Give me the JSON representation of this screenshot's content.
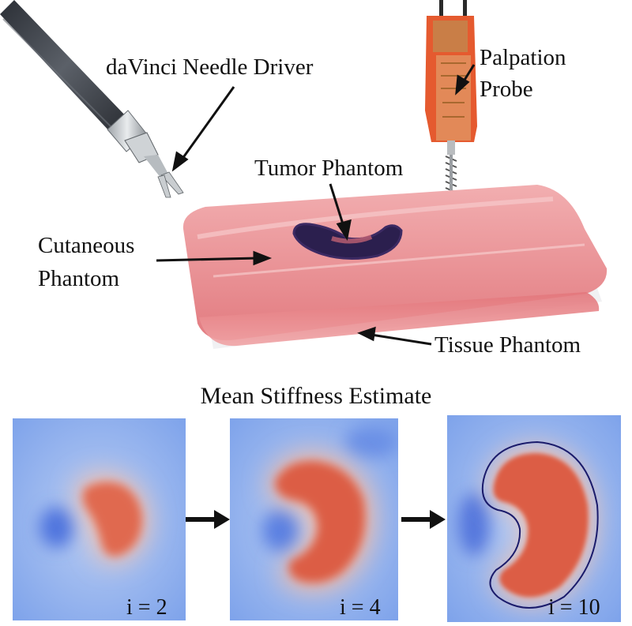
{
  "labels": {
    "needle_driver": "daVinci Needle Driver",
    "palpation_probe_line1": "Palpation",
    "palpation_probe_line2": "Probe",
    "tumor_phantom": "Tumor Phantom",
    "cutaneous_line1": "Cutaneous",
    "cutaneous_line2": "Phantom",
    "tissue_phantom": "Tissue Phantom"
  },
  "figure_title": "Mean Stiffness Estimate",
  "panels": [
    {
      "label": "i = 2",
      "iteration": 2
    },
    {
      "label": "i = 4",
      "iteration": 4
    },
    {
      "label": "i = 10",
      "iteration": 10
    }
  ],
  "colors": {
    "gel": "#e88a8e",
    "tumor": "#2b1f4e",
    "probe": "#e4572e",
    "stiffness_low": "#6d95e6",
    "stiffness_high": "#d9553f",
    "outline": "#1a1b6b"
  }
}
